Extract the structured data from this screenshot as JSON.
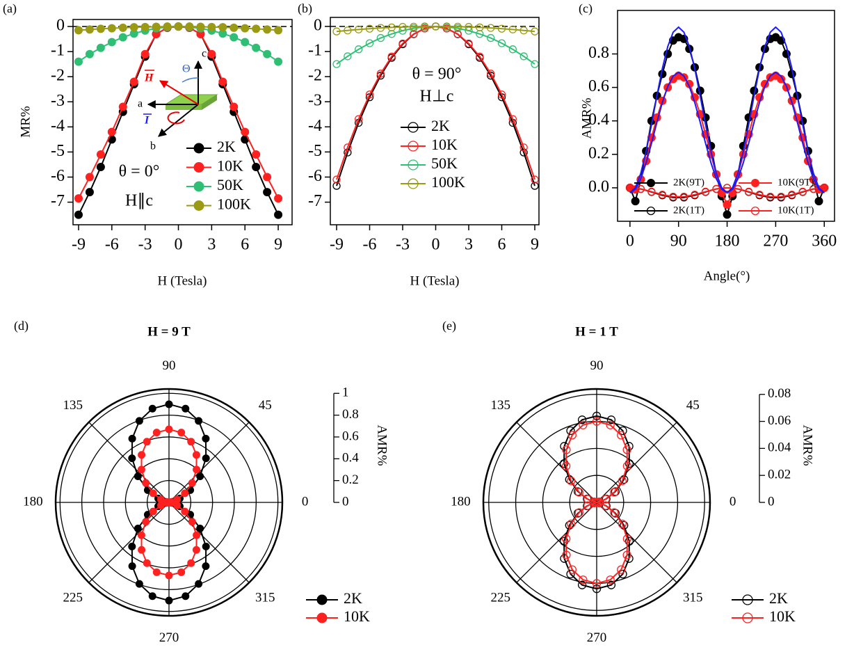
{
  "chart_data": [
    {
      "type": "line",
      "panel_label": "(a)",
      "x_label": "H (Tesla)",
      "y_label": "MR%",
      "annotations": [
        "θ = 0°",
        "H∥c"
      ],
      "inset_labels": [
        "c",
        "a",
        "b",
        "Θ",
        "H",
        "I"
      ],
      "xlim": [
        -9.5,
        10.25
      ],
      "ylim": [
        -7.9,
        0.28
      ],
      "xticks": [
        -9,
        -6,
        -3,
        0,
        3,
        6,
        9
      ],
      "yticks": [
        0,
        -1,
        -2,
        -3,
        -4,
        -5,
        -6,
        -7
      ],
      "hline": 0,
      "x": [
        -9,
        -8,
        -7,
        -6,
        -5,
        -4,
        -3,
        -2,
        -1,
        0,
        1,
        2,
        3,
        4,
        5,
        6,
        7,
        8,
        9
      ],
      "series": [
        {
          "name": "2K",
          "color": "#000000",
          "marker": "filled",
          "values": [
            -7.5,
            -6.6,
            -5.6,
            -4.5,
            -3.4,
            -2.3,
            -1.2,
            -0.3,
            -0.05,
            0,
            -0.05,
            -0.3,
            -1.2,
            -2.3,
            -3.4,
            -4.5,
            -5.6,
            -6.6,
            -7.5
          ]
        },
        {
          "name": "10K",
          "color": "#ff2020",
          "marker": "filled",
          "values": [
            -6.85,
            -6.0,
            -5.1,
            -4.2,
            -3.2,
            -2.2,
            -1.1,
            -0.3,
            -0.05,
            0,
            -0.05,
            -0.3,
            -1.1,
            -2.2,
            -3.2,
            -4.2,
            -5.1,
            -6.0,
            -6.85
          ]
        },
        {
          "name": "50K",
          "color": "#2fbf74",
          "marker": "filled",
          "values": [
            -1.4,
            -1.1,
            -0.85,
            -0.62,
            -0.43,
            -0.28,
            -0.16,
            -0.07,
            -0.02,
            0,
            -0.02,
            -0.07,
            -0.16,
            -0.28,
            -0.43,
            -0.62,
            -0.85,
            -1.1,
            -1.4
          ]
        },
        {
          "name": "100K",
          "color": "#9a9a14",
          "marker": "filled",
          "values": [
            -0.15,
            -0.12,
            -0.09,
            -0.07,
            -0.05,
            -0.03,
            -0.02,
            -0.01,
            0,
            0,
            0,
            -0.01,
            -0.02,
            -0.03,
            -0.05,
            -0.07,
            -0.09,
            -0.12,
            -0.15
          ]
        }
      ]
    },
    {
      "type": "line",
      "panel_label": "(b)",
      "x_label": "H (Tesla)",
      "annotations": [
        "θ = 90°",
        "H⊥c"
      ],
      "xlim": [
        -9.57,
        9.38
      ],
      "ylim": [
        -7.9,
        0.36
      ],
      "xticks": [
        -9,
        -6,
        -3,
        0,
        3,
        6,
        9
      ],
      "yticks": [
        0,
        -1,
        -2,
        -3,
        -4,
        -5,
        -6,
        -7
      ],
      "hline": 0,
      "x": [
        -9,
        -8,
        -7,
        -6,
        -5,
        -4,
        -3,
        -2,
        -1,
        0,
        1,
        2,
        3,
        4,
        5,
        6,
        7,
        8,
        9
      ],
      "series": [
        {
          "name": "2K",
          "color": "#000000",
          "marker": "hollow",
          "values": [
            -6.35,
            -5.02,
            -3.84,
            -2.82,
            -1.96,
            -1.25,
            -0.71,
            -0.31,
            -0.08,
            0,
            -0.08,
            -0.31,
            -0.71,
            -1.25,
            -1.96,
            -2.82,
            -3.84,
            -5.02,
            -6.35
          ]
        },
        {
          "name": "10K",
          "color": "#ff2020",
          "marker": "hollow",
          "values": [
            -6.1,
            -4.82,
            -3.69,
            -2.71,
            -1.88,
            -1.2,
            -0.68,
            -0.3,
            -0.08,
            0,
            -0.08,
            -0.3,
            -0.68,
            -1.2,
            -1.88,
            -2.71,
            -3.69,
            -4.82,
            -6.1
          ]
        },
        {
          "name": "50K",
          "color": "#2fbf74",
          "marker": "hollow",
          "values": [
            -1.5,
            -1.19,
            -0.91,
            -0.67,
            -0.46,
            -0.3,
            -0.17,
            -0.07,
            -0.02,
            0,
            -0.02,
            -0.07,
            -0.17,
            -0.3,
            -0.46,
            -0.67,
            -0.91,
            -1.19,
            -1.5
          ]
        },
        {
          "name": "100K",
          "color": "#9a9a14",
          "marker": "hollow",
          "values": [
            -0.2,
            -0.16,
            -0.12,
            -0.09,
            -0.06,
            -0.04,
            -0.02,
            -0.01,
            0,
            0,
            0,
            -0.01,
            -0.02,
            -0.04,
            -0.06,
            -0.09,
            -0.12,
            -0.16,
            -0.2
          ]
        }
      ]
    },
    {
      "type": "line",
      "panel_label": "(c)",
      "x_label": "Angle(°)",
      "y_label": "AMR%",
      "xlim": [
        -23,
        379
      ],
      "ylim": [
        -0.2,
        1.06
      ],
      "xticks": [
        0,
        90,
        180,
        270,
        360
      ],
      "yticks": [
        {
          "value": 0,
          "label": "0.0"
        },
        0.2,
        0.4,
        0.6,
        0.8
      ],
      "series": [
        {
          "name": "2K(9T)",
          "color": "#000000",
          "marker": "filled",
          "x": [
            0,
            10,
            20,
            30,
            40,
            50,
            60,
            70,
            80,
            90,
            100,
            110,
            120,
            130,
            140,
            150,
            160,
            170,
            180,
            190,
            200,
            210,
            220,
            230,
            240,
            250,
            260,
            270,
            280,
            290,
            300,
            310,
            320,
            330,
            340,
            350,
            360
          ],
          "values": [
            0,
            -0.08,
            0.05,
            0.22,
            0.4,
            0.55,
            0.68,
            0.8,
            0.88,
            0.9,
            0.89,
            0.83,
            0.72,
            0.58,
            0.42,
            0.25,
            0.08,
            -0.05,
            -0.16,
            -0.05,
            0.08,
            0.25,
            0.42,
            0.58,
            0.72,
            0.83,
            0.89,
            0.9,
            0.88,
            0.8,
            0.68,
            0.55,
            0.4,
            0.22,
            0.05,
            -0.08,
            0
          ]
        },
        {
          "name": "10K(9T)",
          "color": "#ff2020",
          "marker": "filled",
          "x": [
            0,
            10,
            20,
            30,
            40,
            50,
            60,
            70,
            80,
            90,
            100,
            110,
            120,
            130,
            140,
            150,
            160,
            170,
            180,
            190,
            200,
            210,
            220,
            230,
            240,
            250,
            260,
            270,
            280,
            290,
            300,
            310,
            320,
            330,
            340,
            350,
            360
          ],
          "values": [
            0,
            -0.01,
            0.05,
            0.16,
            0.3,
            0.42,
            0.52,
            0.6,
            0.65,
            0.67,
            0.66,
            0.62,
            0.54,
            0.44,
            0.32,
            0.2,
            0.08,
            -0.03,
            -0.1,
            -0.03,
            0.08,
            0.2,
            0.32,
            0.44,
            0.54,
            0.62,
            0.66,
            0.67,
            0.65,
            0.6,
            0.52,
            0.42,
            0.3,
            0.16,
            0.05,
            -0.01,
            0
          ]
        },
        {
          "name": "2K(1T)",
          "color": "#000000",
          "marker": "hollow",
          "x": [
            0,
            20,
            40,
            60,
            80,
            100,
            120,
            140,
            160,
            180,
            200,
            220,
            240,
            260,
            280,
            300,
            320,
            340,
            360
          ],
          "values": [
            0,
            -0.007,
            -0.025,
            -0.045,
            -0.058,
            -0.058,
            -0.045,
            -0.025,
            -0.007,
            0,
            -0.007,
            -0.025,
            -0.045,
            -0.058,
            -0.058,
            -0.045,
            -0.025,
            -0.007,
            0
          ]
        },
        {
          "name": "10K(1T)",
          "color": "#ff2020",
          "marker": "hollow",
          "x": [
            0,
            20,
            40,
            60,
            80,
            100,
            120,
            140,
            160,
            180,
            200,
            220,
            240,
            260,
            280,
            300,
            320,
            340,
            360
          ],
          "values": [
            0,
            -0.006,
            -0.023,
            -0.041,
            -0.053,
            -0.053,
            -0.041,
            -0.023,
            -0.006,
            0,
            -0.006,
            -0.023,
            -0.041,
            -0.053,
            -0.053,
            -0.041,
            -0.023,
            -0.006,
            0
          ]
        }
      ],
      "fits": [
        {
          "color": "#1a1aff",
          "x": [
            0,
            10,
            20,
            30,
            40,
            50,
            60,
            70,
            80,
            90,
            100,
            110,
            120,
            130,
            140,
            150,
            160,
            170,
            180,
            190,
            200,
            210,
            220,
            230,
            240,
            250,
            260,
            270,
            280,
            290,
            300,
            310,
            320,
            330,
            340,
            350,
            360
          ],
          "values": [
            -0.03,
            0,
            0.086,
            0.218,
            0.379,
            0.551,
            0.713,
            0.844,
            0.93,
            0.96,
            0.93,
            0.844,
            0.713,
            0.551,
            0.379,
            0.218,
            0.086,
            0,
            -0.03,
            0,
            0.086,
            0.218,
            0.379,
            0.551,
            0.713,
            0.844,
            0.93,
            0.96,
            0.93,
            0.844,
            0.713,
            0.551,
            0.379,
            0.218,
            0.086,
            0,
            -0.03
          ]
        },
        {
          "color": "#1a1aff",
          "x": [
            0,
            10,
            20,
            30,
            40,
            50,
            60,
            70,
            80,
            90,
            100,
            110,
            120,
            130,
            140,
            150,
            160,
            170,
            180,
            190,
            200,
            210,
            220,
            230,
            240,
            250,
            260,
            270,
            280,
            290,
            300,
            310,
            320,
            330,
            340,
            350,
            360
          ],
          "values": [
            -0.03,
            -0.008,
            0.054,
            0.15,
            0.267,
            0.393,
            0.51,
            0.606,
            0.668,
            0.69,
            0.668,
            0.606,
            0.51,
            0.393,
            0.267,
            0.15,
            0.054,
            -0.008,
            -0.03,
            -0.008,
            0.054,
            0.15,
            0.267,
            0.393,
            0.51,
            0.606,
            0.668,
            0.69,
            0.668,
            0.606,
            0.51,
            0.393,
            0.267,
            0.15,
            0.054,
            -0.008,
            -0.03
          ]
        }
      ]
    },
    {
      "type": "polar",
      "panel_label": "(d)",
      "title": "H = 9 T",
      "r_label": "AMR%",
      "rlim": [
        0,
        1.04
      ],
      "rticks": [
        0,
        0.2,
        0.4,
        0.6,
        0.8,
        1
      ],
      "angle_ticks": [
        0,
        45,
        90,
        135,
        180,
        225,
        270,
        315
      ],
      "x": [
        0,
        10,
        20,
        30,
        40,
        50,
        60,
        70,
        80,
        90,
        100,
        110,
        120,
        130,
        140,
        150,
        160,
        170,
        180,
        190,
        200,
        210,
        220,
        230,
        240,
        250,
        260,
        270,
        280,
        290,
        300,
        310,
        320,
        330,
        340,
        350
      ],
      "series": [
        {
          "name": "2K",
          "color": "#000000",
          "marker": "filled",
          "values": [
            0,
            0.027,
            0.105,
            0.225,
            0.372,
            0.528,
            0.675,
            0.795,
            0.873,
            0.9,
            0.873,
            0.795,
            0.675,
            0.528,
            0.372,
            0.225,
            0.105,
            0.027,
            0,
            0.027,
            0.105,
            0.225,
            0.372,
            0.528,
            0.675,
            0.795,
            0.873,
            0.9,
            0.873,
            0.795,
            0.675,
            0.528,
            0.372,
            0.225,
            0.105,
            0.027
          ]
        },
        {
          "name": "10K",
          "color": "#ff2020",
          "marker": "filled",
          "values": [
            0,
            0.02,
            0.078,
            0.168,
            0.277,
            0.393,
            0.503,
            0.592,
            0.65,
            0.67,
            0.65,
            0.592,
            0.503,
            0.393,
            0.277,
            0.168,
            0.078,
            0.02,
            0,
            0.02,
            0.078,
            0.168,
            0.277,
            0.393,
            0.503,
            0.592,
            0.65,
            0.67,
            0.65,
            0.592,
            0.503,
            0.393,
            0.277,
            0.168,
            0.078,
            0.02
          ]
        }
      ]
    },
    {
      "type": "polar",
      "panel_label": "(e)",
      "title": "H = 1 T",
      "r_label": "AMR%",
      "rlim": [
        0,
        0.084
      ],
      "rticks": [
        0,
        0.02,
        0.04,
        0.06,
        0.08
      ],
      "angle_ticks": [
        0,
        45,
        90,
        135,
        180,
        225,
        270,
        315
      ],
      "x": [
        0,
        10,
        20,
        30,
        40,
        50,
        60,
        70,
        80,
        90,
        100,
        110,
        120,
        130,
        140,
        150,
        160,
        170,
        180,
        190,
        200,
        210,
        220,
        230,
        240,
        250,
        260,
        270,
        280,
        290,
        300,
        310,
        320,
        330,
        340,
        350
      ],
      "series": [
        {
          "name": "2K",
          "color": "#000000",
          "marker": "hollow",
          "values": [
            0,
            0.0019,
            0.0075,
            0.016,
            0.0264,
            0.0376,
            0.048,
            0.0565,
            0.0621,
            0.064,
            0.0621,
            0.0565,
            0.048,
            0.0376,
            0.0264,
            0.016,
            0.0075,
            0.0019,
            0,
            0.0019,
            0.0075,
            0.016,
            0.0264,
            0.0376,
            0.048,
            0.0565,
            0.0621,
            0.064,
            0.0621,
            0.0565,
            0.048,
            0.0376,
            0.0264,
            0.016,
            0.0075,
            0.0019
          ]
        },
        {
          "name": "10K",
          "color": "#ff2020",
          "marker": "hollow",
          "values": [
            0,
            0.0018,
            0.007,
            0.015,
            0.0248,
            0.0352,
            0.045,
            0.053,
            0.0582,
            0.06,
            0.0582,
            0.053,
            0.045,
            0.0352,
            0.0248,
            0.015,
            0.007,
            0.0018,
            0,
            0.0018,
            0.007,
            0.015,
            0.0248,
            0.0352,
            0.045,
            0.053,
            0.0582,
            0.06,
            0.0582,
            0.053,
            0.045,
            0.0352,
            0.0248,
            0.015,
            0.007,
            0.0018
          ]
        }
      ]
    }
  ]
}
